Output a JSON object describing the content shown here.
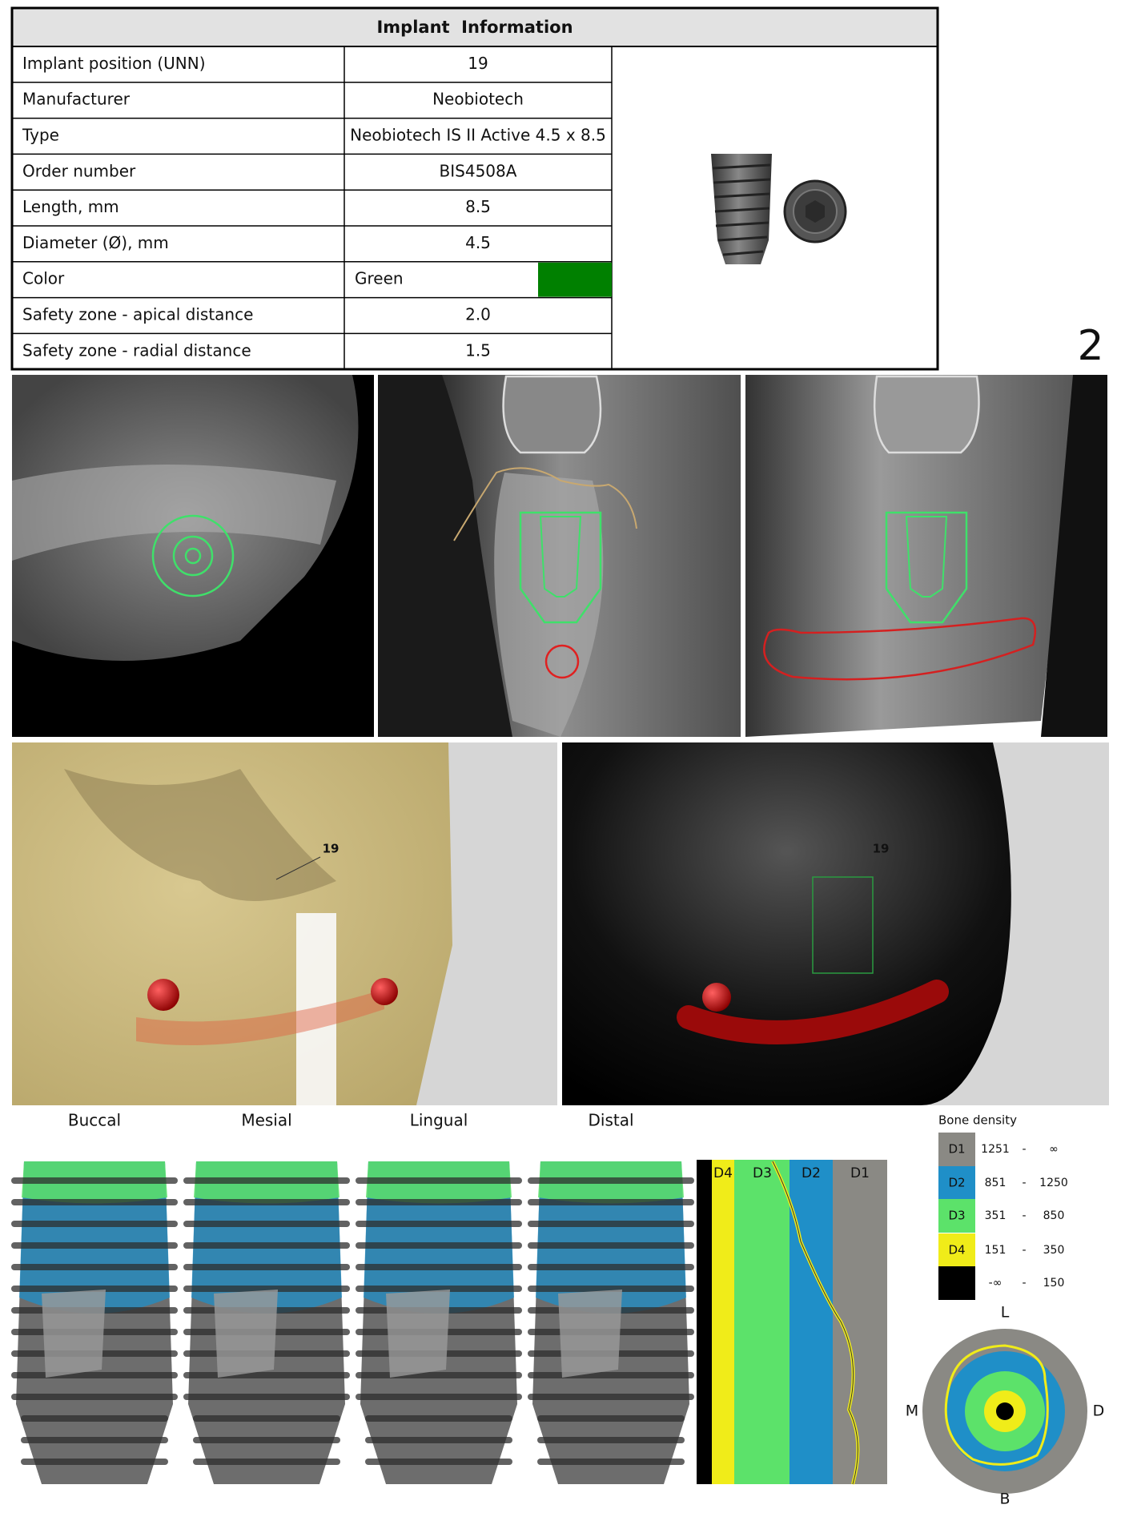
{
  "header": {
    "title": "Implant  Information"
  },
  "table": {
    "rows": [
      [
        "Implant position (UNN)",
        "19"
      ],
      [
        "Manufacturer",
        "Neobiotech"
      ],
      [
        "Type",
        "Neobiotech IS II Active 4.5 x 8.5"
      ],
      [
        "Order number",
        "BIS4508A"
      ],
      [
        "Length, mm",
        "8.5"
      ],
      [
        "Diameter (Ø), mm",
        "4.5"
      ],
      [
        "Color",
        "Green"
      ],
      [
        "Safety zone - apical distance",
        "2.0"
      ],
      [
        "Safety zone - radial distance",
        "1.5"
      ]
    ],
    "color_swatch": "#008000"
  },
  "page_number": "2",
  "views_3d": [
    {
      "tooth_label": "19"
    },
    {
      "tooth_label": "19"
    }
  ],
  "implant_views": [
    "Buccal",
    "Mesial",
    "Lingual",
    "Distal"
  ],
  "density_strip": {
    "labels": [
      "D4",
      "D3",
      "D2",
      "D1"
    ]
  },
  "bone_density": {
    "title": "Bone density",
    "separator": "-",
    "rows": [
      {
        "label": "D1",
        "min": "1251",
        "max": "∞",
        "color": "#8a8984"
      },
      {
        "label": "D2",
        "min": "851",
        "max": "1250",
        "color": "#1f8fc8"
      },
      {
        "label": "D3",
        "min": "351",
        "max": "850",
        "color": "#5ce26a"
      },
      {
        "label": "D4",
        "min": "151",
        "max": "350",
        "color": "#f0ec19"
      },
      {
        "min": "-∞",
        "max": "150",
        "color": "#000000"
      }
    ]
  },
  "compass": {
    "top": "L",
    "left": "M",
    "right": "D",
    "bottom": "B"
  }
}
